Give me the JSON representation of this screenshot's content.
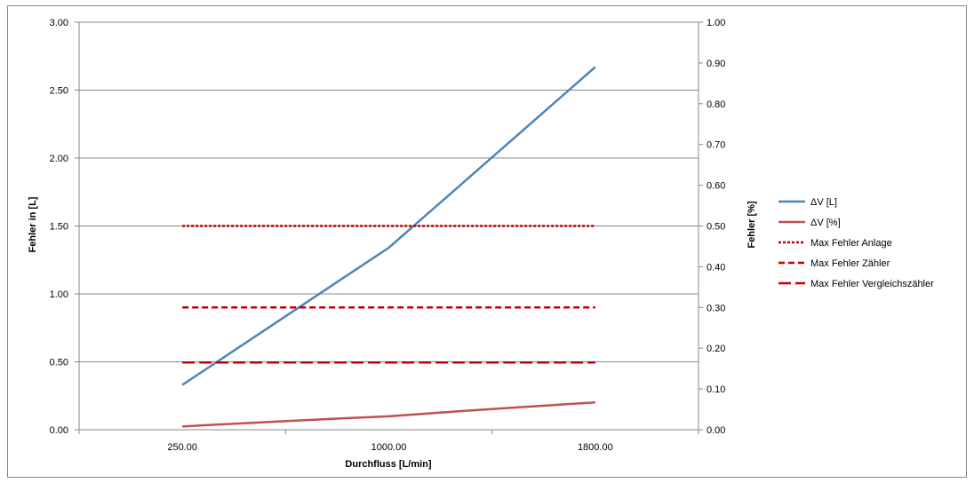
{
  "chart_data": {
    "type": "line",
    "x": [
      "250.00",
      "1000.00",
      "1800.00"
    ],
    "xlabel": "Durchfluss [L/min]",
    "ylabel_left": "Fehler in [L]",
    "ylabel_right": "Fehler [%]",
    "ylim_left": [
      0,
      3
    ],
    "ylim_right": [
      0,
      1
    ],
    "y_ticks_left": [
      "0.00",
      "0.50",
      "1.00",
      "1.50",
      "2.00",
      "2.50",
      "3.00"
    ],
    "y_ticks_right": [
      "0.00",
      "0.10",
      "0.20",
      "0.30",
      "0.40",
      "0.50",
      "0.60",
      "0.70",
      "0.80",
      "0.90",
      "1.00"
    ],
    "grid": true,
    "legend_position": "right",
    "series": [
      {
        "name": "ΔV [L]",
        "axis": "left",
        "values": [
          0.33,
          1.34,
          2.67
        ],
        "color": "#4f81bd",
        "style": "solid"
      },
      {
        "name": "ΔV [%]",
        "axis": "right",
        "values": [
          0.008,
          0.033,
          0.067
        ],
        "color": "#c0504d",
        "style": "solid"
      },
      {
        "name": "Max Fehler Anlage",
        "axis": "right",
        "values": [
          0.5,
          0.5,
          0.5
        ],
        "color": "#c00000",
        "style": "dotted"
      },
      {
        "name": "Max Fehler Zähler",
        "axis": "right",
        "values": [
          0.3,
          0.3,
          0.3
        ],
        "color": "#c00000",
        "style": "dashed"
      },
      {
        "name": "Max Fehler Vergleichszähler",
        "axis": "right",
        "values": [
          0.165,
          0.165,
          0.165
        ],
        "color": "#c00000",
        "style": "longdash"
      }
    ]
  }
}
